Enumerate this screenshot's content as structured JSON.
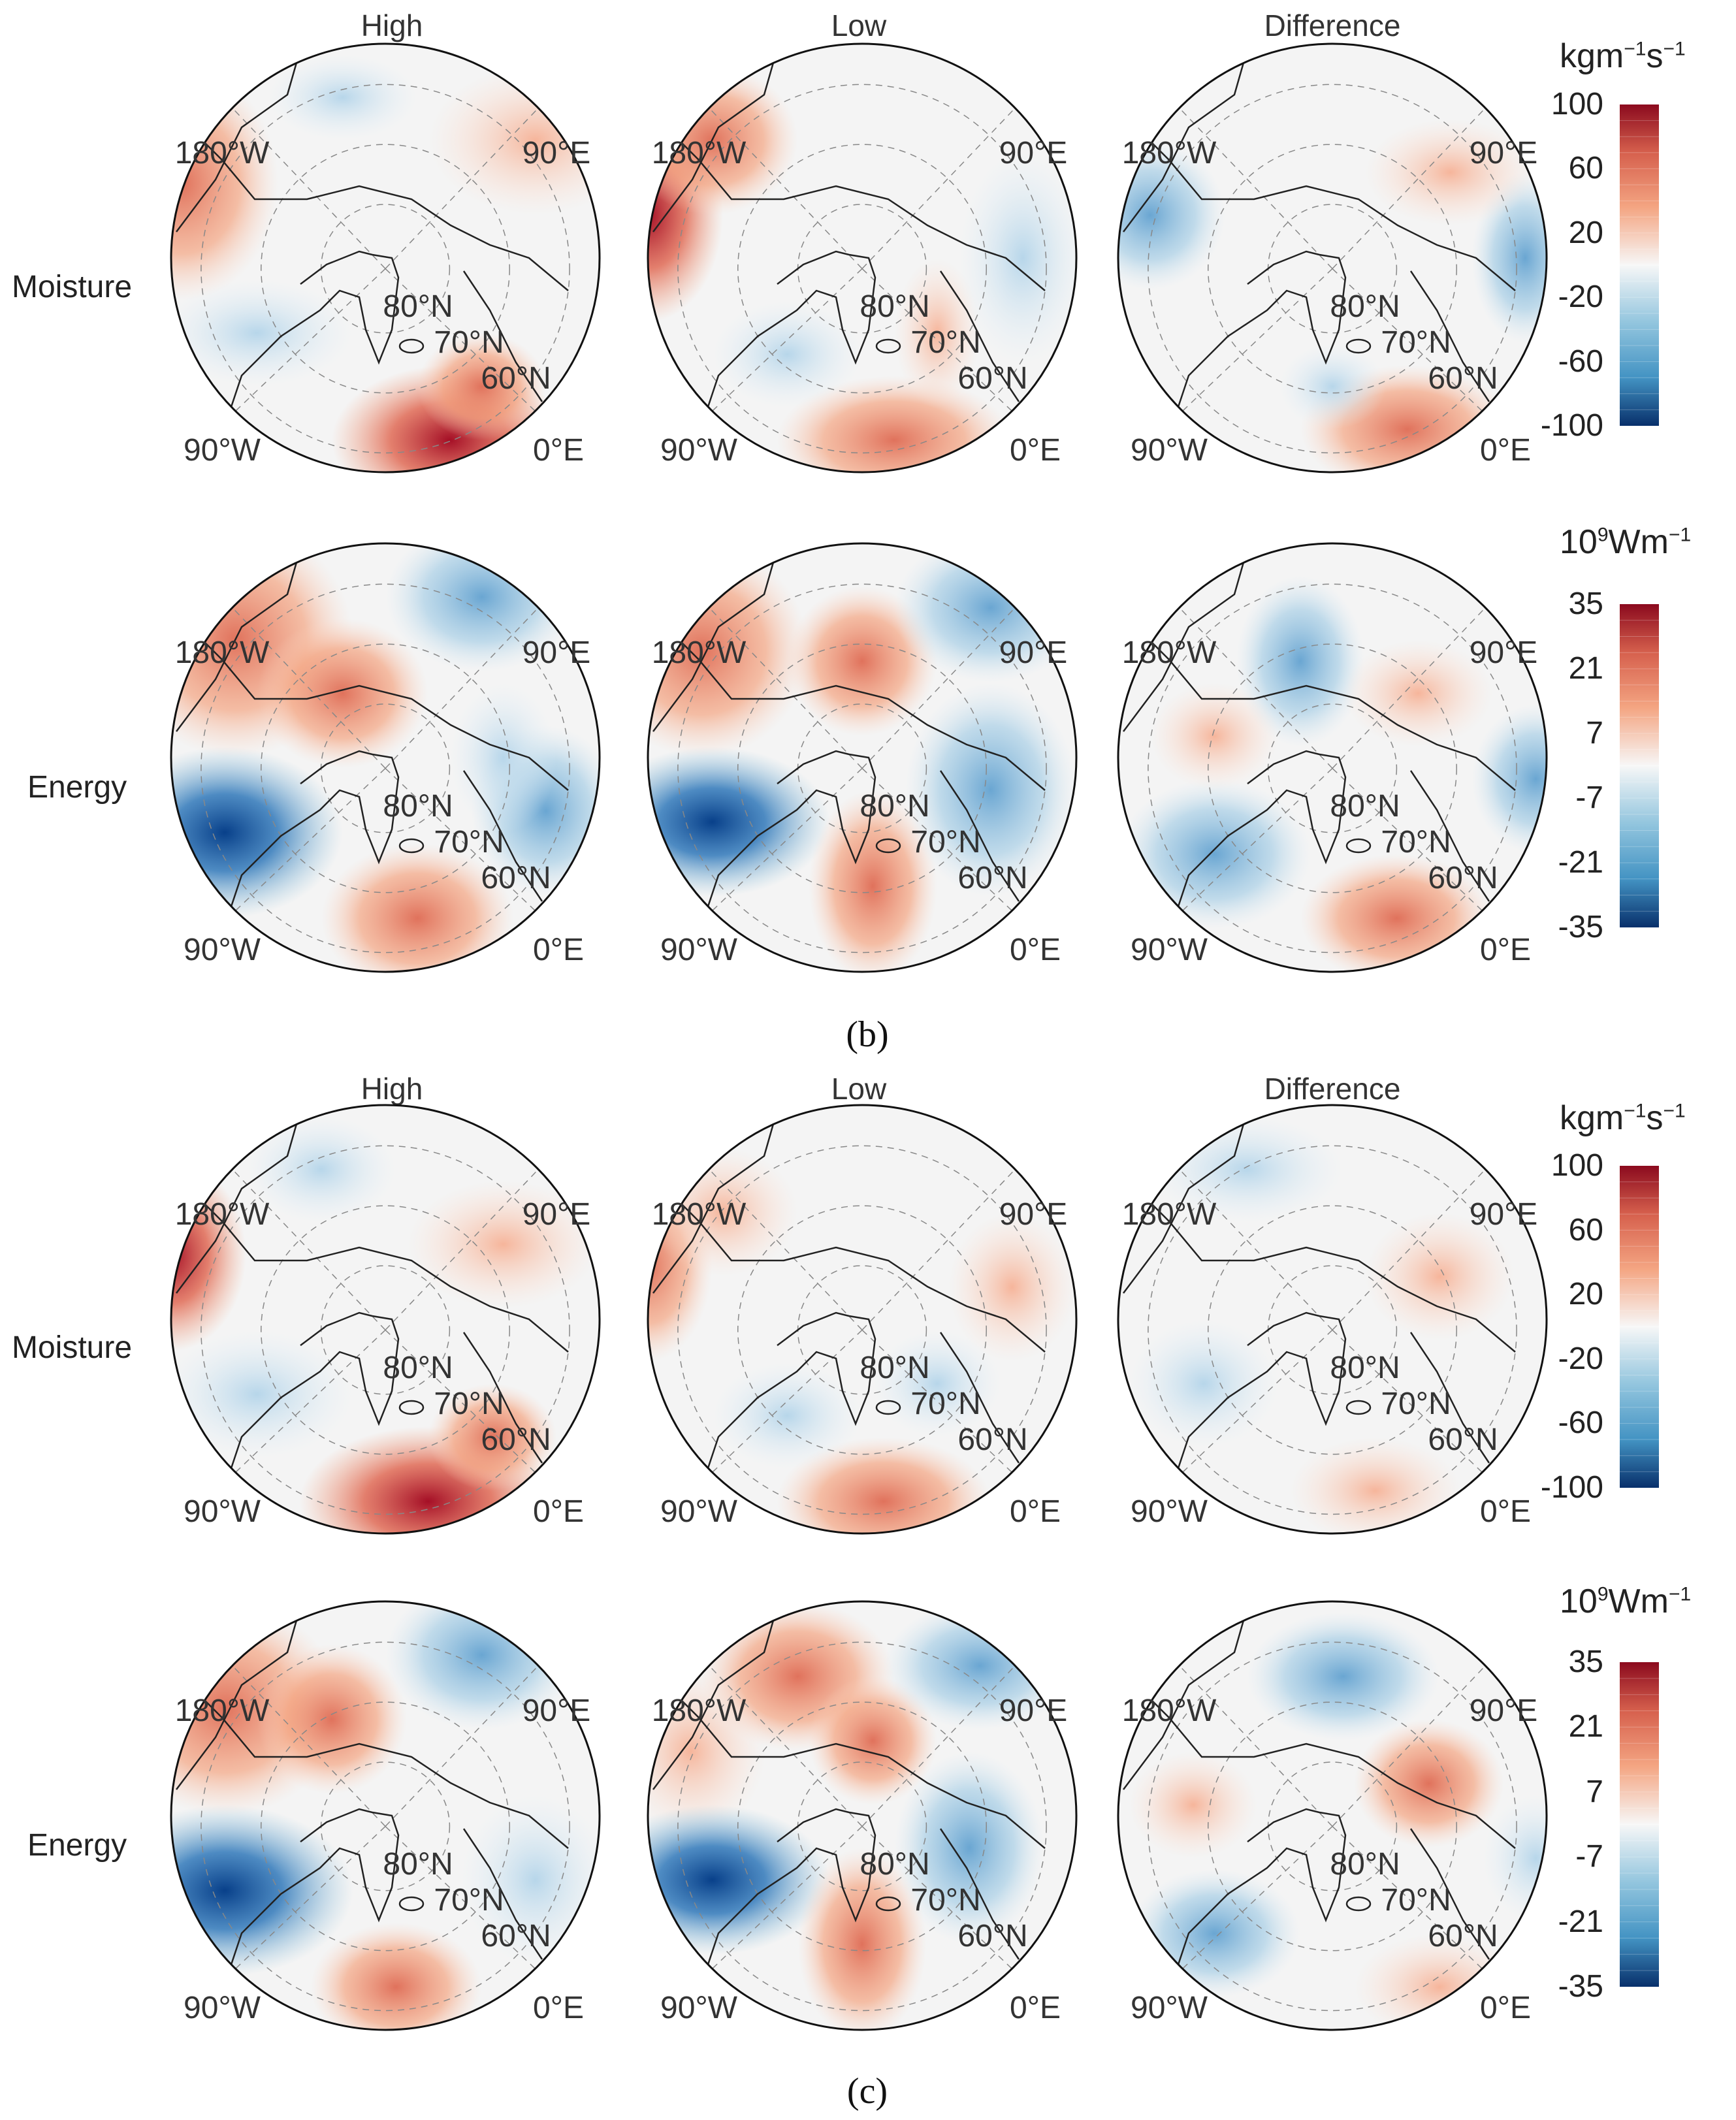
{
  "chart_data": [
    {
      "type": "heatmap",
      "panel": "b",
      "columns": [
        "High",
        "Low",
        "Difference"
      ],
      "rows": [
        {
          "label": "Moisture",
          "unit": "kgm",
          "unit_sup1": "−1",
          "unit_mid": "s",
          "unit_sup2": "−1",
          "colorbar_ticks": [
            "100",
            "60",
            "20",
            "-20",
            "-60",
            "-100"
          ],
          "vmin": -100,
          "vmax": 100
        },
        {
          "label": "Energy",
          "unit": "10",
          "unit_sup1": "9",
          "unit_mid": "Wm",
          "unit_sup2": "−1",
          "colorbar_ticks": [
            "35",
            "21",
            "7",
            "-7",
            "-21",
            "-35"
          ],
          "vmin": -35,
          "vmax": 35
        }
      ]
    },
    {
      "type": "heatmap",
      "panel": "c",
      "columns": [
        "High",
        "Low",
        "Difference"
      ],
      "rows": [
        {
          "label": "Moisture",
          "unit": "kgm",
          "unit_sup1": "−1",
          "unit_mid": "s",
          "unit_sup2": "−1",
          "colorbar_ticks": [
            "100",
            "60",
            "20",
            "-20",
            "-60",
            "-100"
          ],
          "vmin": -100,
          "vmax": 100
        },
        {
          "label": "Energy",
          "unit": "10",
          "unit_sup1": "9",
          "unit_mid": "Wm",
          "unit_sup2": "−1",
          "colorbar_ticks": [
            "35",
            "21",
            "7",
            "-7",
            "-21",
            "-35"
          ],
          "vmin": -35,
          "vmax": 35
        }
      ]
    }
  ],
  "map_labels": {
    "lon_180w": "180°W",
    "lon_90e": "90°E",
    "lon_90w": "90°W",
    "lon_0e": "0°E",
    "lat_80n": "80°N",
    "lat_70n": "70°N",
    "lat_60n": "60°N"
  },
  "captions": {
    "b": "(b)",
    "c": "(c)"
  },
  "colors": {
    "red_dark": "#8b0a1e",
    "red": "#d6604d",
    "red_light": "#f4a582",
    "white": "#f7f7f7",
    "blue_light": "#92c5de",
    "blue": "#4393c3",
    "blue_dark": "#08306b"
  }
}
